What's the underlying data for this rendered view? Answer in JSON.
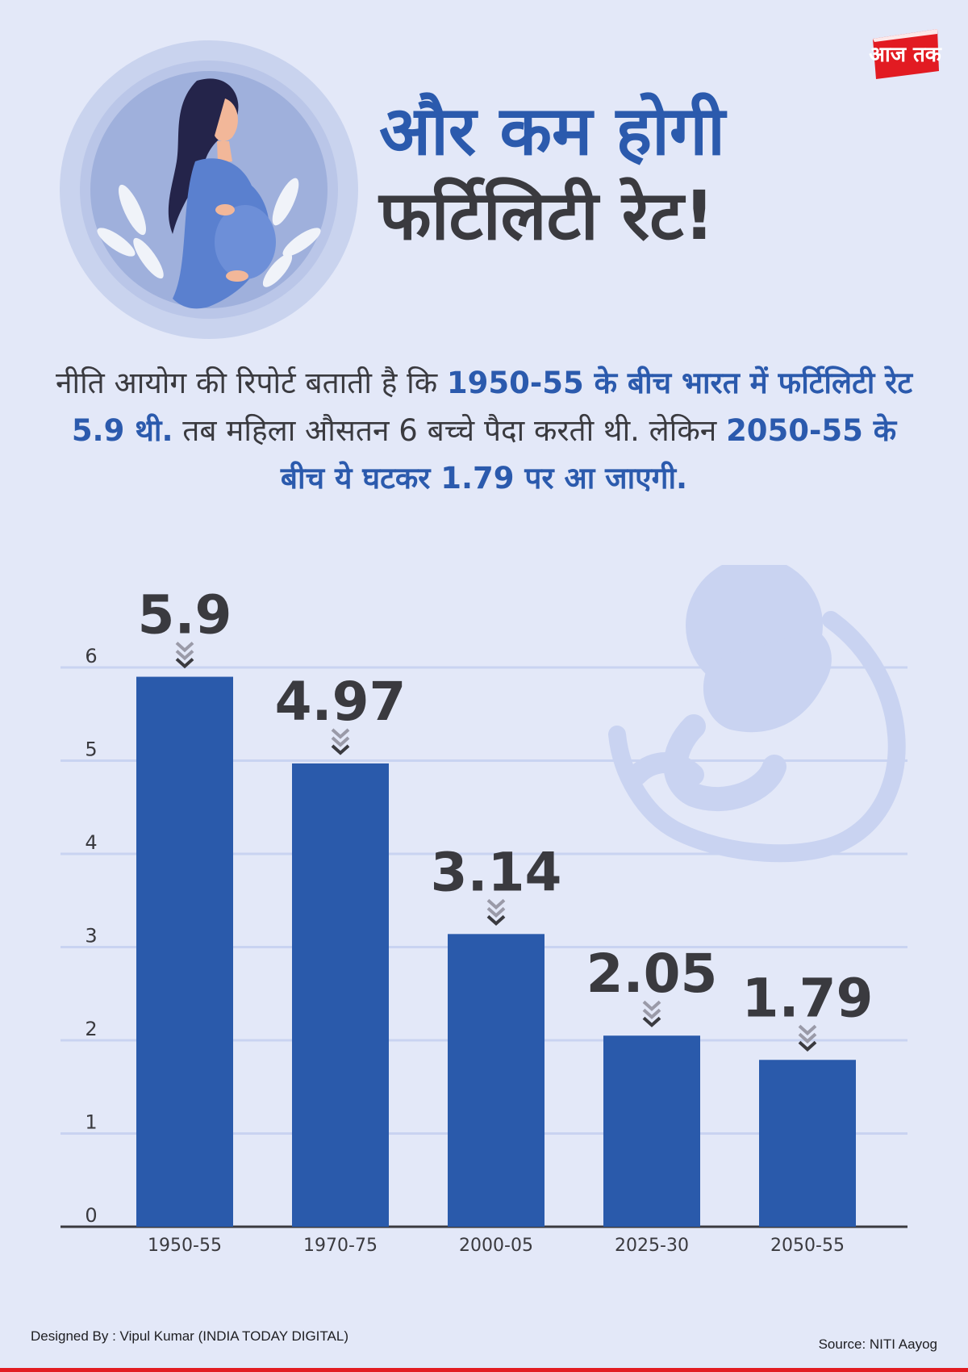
{
  "brand": {
    "logo_text": "आज तक",
    "colors": {
      "accent": "#2b5aad",
      "logo_red": "#e21b22",
      "background": "#e3e8f8"
    }
  },
  "header": {
    "title_line1": "और कम होगी",
    "title_line2": "फर्टिलिटी रेट!"
  },
  "intro": {
    "segments": [
      {
        "text": "नीति आयोग की रिपोर्ट बताती है कि ",
        "highlight": false
      },
      {
        "text": "1950-55 के बीच भारत में फर्टिलिटी रेट 5.9 थी.",
        "highlight": true
      },
      {
        "text": " तब महिला औसतन 6 बच्चे पैदा करती थी. लेकिन ",
        "highlight": false
      },
      {
        "text": "2050-55 के बीच ये घटकर 1.79 पर आ जाएगी.",
        "highlight": true
      }
    ]
  },
  "chart_data": {
    "type": "bar",
    "title": "",
    "xlabel": "",
    "ylabel": "",
    "categories": [
      "1950-55",
      "1970-75",
      "2000-05",
      "2025-30",
      "2050-55"
    ],
    "values": [
      5.9,
      4.97,
      3.14,
      2.05,
      1.79
    ],
    "value_labels": [
      "5.9",
      "4.97",
      "3.14",
      "2.05",
      "1.79"
    ],
    "ylim": [
      0,
      6
    ],
    "yticks": [
      0,
      1,
      2,
      3,
      4,
      5,
      6
    ],
    "grid": true,
    "bar_color": "#2a5aab",
    "grid_color": "#c9d3f1"
  },
  "footer": {
    "credit": "Designed By : Vipul Kumar (INDIA TODAY DIGITAL)",
    "source": "Source: NITI Aayog"
  }
}
